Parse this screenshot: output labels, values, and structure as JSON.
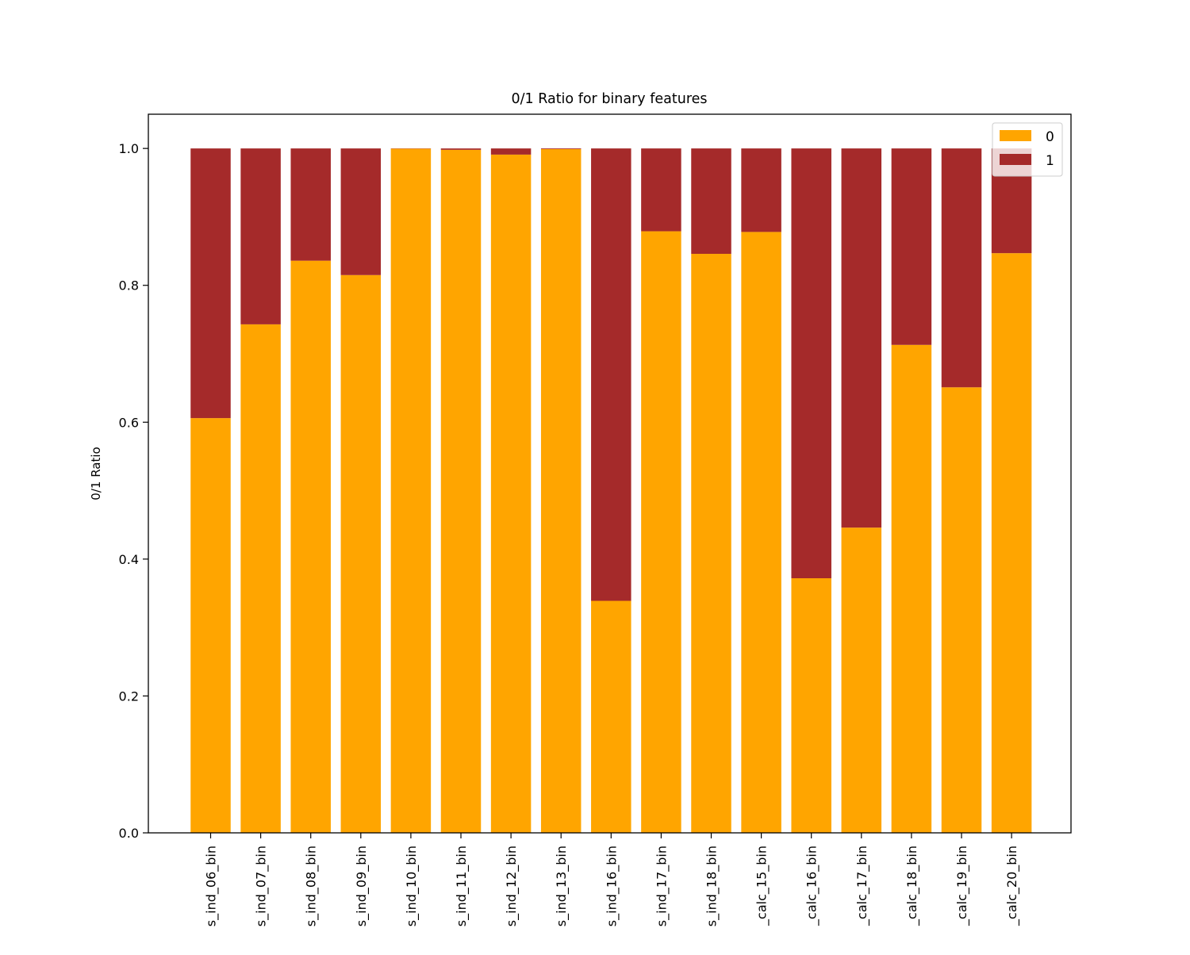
{
  "chart_data": {
    "type": "bar",
    "stacked": true,
    "title": "0/1 Ratio for binary features",
    "xlabel": "",
    "ylabel": "0/1 Ratio",
    "ylim": [
      0,
      1.05
    ],
    "yticks": [
      "0.0",
      "0.2",
      "0.4",
      "0.6",
      "0.8",
      "1.0"
    ],
    "legend_position": "top-right",
    "categories": [
      "s_ind_06_bin",
      "s_ind_07_bin",
      "s_ind_08_bin",
      "s_ind_09_bin",
      "s_ind_10_bin",
      "s_ind_11_bin",
      "s_ind_12_bin",
      "s_ind_13_bin",
      "s_ind_16_bin",
      "s_ind_17_bin",
      "s_ind_18_bin",
      "_calc_15_bin",
      "_calc_16_bin",
      "_calc_17_bin",
      "_calc_18_bin",
      "_calc_19_bin",
      "_calc_20_bin"
    ],
    "series": [
      {
        "name": "0",
        "color": "#FFA500",
        "values": [
          0.606,
          0.743,
          0.836,
          0.815,
          0.9996,
          0.998,
          0.991,
          0.999,
          0.339,
          0.879,
          0.846,
          0.878,
          0.372,
          0.446,
          0.713,
          0.651,
          0.847
        ]
      },
      {
        "name": "1",
        "color": "#A52A2A",
        "values": [
          0.394,
          0.257,
          0.164,
          0.185,
          0.0004,
          0.002,
          0.009,
          0.001,
          0.661,
          0.121,
          0.154,
          0.122,
          0.628,
          0.554,
          0.287,
          0.349,
          0.153
        ]
      }
    ]
  }
}
